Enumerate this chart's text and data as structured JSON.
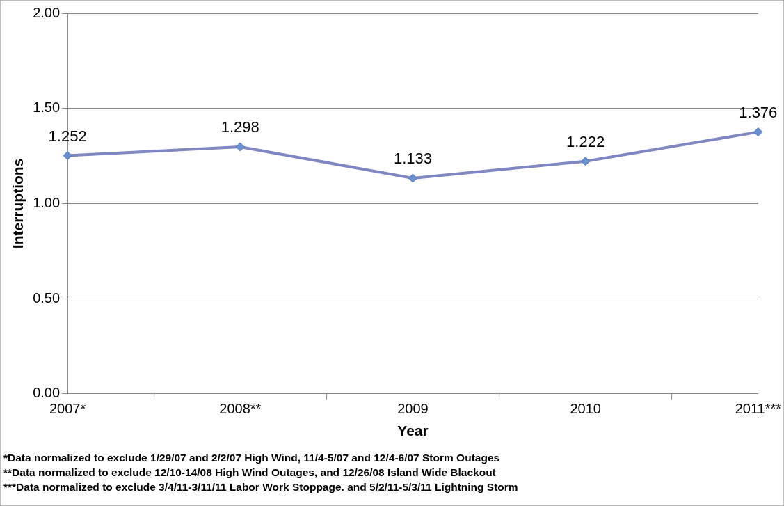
{
  "chart_data": {
    "type": "line",
    "xlabel": "Year",
    "ylabel": "Interruptions",
    "categories": [
      "2007*",
      "2008**",
      "2009",
      "2010",
      "2011***"
    ],
    "series": [
      {
        "color": "#7f86c2",
        "values": [
          1.252,
          1.298,
          1.133,
          1.222,
          1.376
        ]
      }
    ],
    "ylim": [
      0,
      2
    ],
    "yticks": [
      {
        "value": 0,
        "label": "0.00"
      },
      {
        "value": 0.5,
        "label": "0.50"
      },
      {
        "value": 1,
        "label": "1.00"
      },
      {
        "value": 1.5,
        "label": "1.50"
      },
      {
        "value": 2,
        "label": "2.00"
      }
    ],
    "grid": "y",
    "legend": false,
    "marker": "diamond",
    "line_style": "solid",
    "data_labels": true,
    "annotations": [
      "*Data normalized to exclude 1/29/07 and 2/2/07 High Wind, 11/4-5/07 and 12/4-6/07 Storm Outages",
      "**Data normalized to exclude 12/10-14/08 High Wind Outages, and 12/26/08 Island Wide Blackout",
      "***Data normalized to exclude 3/4/11-3/11/11 Labor Work Stoppage. and 5/2/11-5/3/11 Lightning Storm"
    ]
  }
}
